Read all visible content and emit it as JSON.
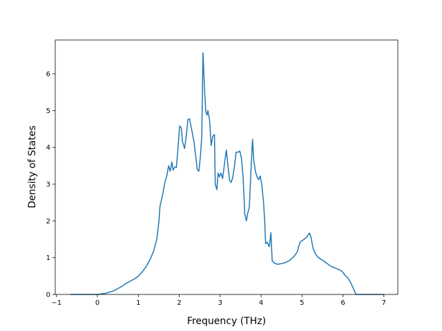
{
  "chart_data": {
    "type": "line",
    "x_label": "Frequency (THz)",
    "y_label": "Density of States",
    "xlim": [
      -1.03,
      7.34
    ],
    "ylim": [
      0,
      6.92
    ],
    "xticks": [
      {
        "value": -1,
        "label": "−1"
      },
      0,
      1,
      2,
      3,
      4,
      5,
      6,
      7
    ],
    "yticks": [
      0,
      1,
      2,
      3,
      4,
      5,
      6
    ],
    "grid": false,
    "series": [
      {
        "color": "#1f77b4",
        "x": [
          -0.66,
          0,
          0.2,
          0.4,
          0.6,
          0.7,
          0.9,
          1.0,
          1.1,
          1.2,
          1.3,
          1.38,
          1.45,
          1.5,
          1.53,
          1.6,
          1.65,
          1.7,
          1.74,
          1.78,
          1.82,
          1.85,
          1.89,
          1.93,
          1.97,
          2.01,
          2.05,
          2.08,
          2.13,
          2.18,
          2.21,
          2.25,
          2.3,
          2.36,
          2.44,
          2.48,
          2.52,
          2.55,
          2.58,
          2.62,
          2.65,
          2.68,
          2.7,
          2.74,
          2.78,
          2.82,
          2.86,
          2.88,
          2.92,
          2.95,
          2.98,
          3.02,
          3.06,
          3.11,
          3.15,
          3.19,
          3.23,
          3.27,
          3.31,
          3.35,
          3.39,
          3.44,
          3.48,
          3.52,
          3.56,
          3.6,
          3.64,
          3.67,
          3.71,
          3.75,
          3.79,
          3.82,
          3.86,
          3.9,
          3.94,
          3.98,
          4.02,
          4.06,
          4.09,
          4.11,
          4.15,
          4.2,
          4.24,
          4.27,
          4.33,
          4.4,
          4.5,
          4.6,
          4.7,
          4.8,
          4.88,
          4.95,
          5.05,
          5.12,
          5.18,
          5.22,
          5.27,
          5.33,
          5.4,
          5.5,
          5.6,
          5.7,
          5.85,
          5.95,
          6.0,
          6.05,
          6.12,
          6.2,
          6.27,
          6.32,
          7.0
        ],
        "values": [
          0,
          0,
          0.03,
          0.1,
          0.22,
          0.3,
          0.42,
          0.5,
          0.62,
          0.77,
          0.98,
          1.2,
          1.5,
          1.95,
          2.4,
          2.75,
          3.05,
          3.25,
          3.5,
          3.35,
          3.6,
          3.38,
          3.47,
          3.45,
          4.0,
          4.58,
          4.53,
          4.15,
          3.97,
          4.4,
          4.75,
          4.78,
          4.5,
          4.15,
          3.4,
          3.35,
          3.8,
          4.3,
          6.57,
          5.5,
          4.95,
          4.88,
          5.0,
          4.75,
          4.05,
          4.3,
          4.35,
          3.0,
          2.85,
          3.3,
          3.2,
          3.3,
          3.15,
          3.6,
          3.93,
          3.5,
          3.1,
          3.05,
          3.2,
          3.5,
          3.87,
          3.87,
          3.9,
          3.7,
          3.2,
          2.2,
          2.0,
          2.2,
          2.35,
          3.3,
          4.22,
          3.65,
          3.35,
          3.2,
          3.12,
          3.22,
          2.95,
          2.5,
          1.95,
          1.38,
          1.42,
          1.3,
          1.68,
          0.92,
          0.85,
          0.82,
          0.84,
          0.87,
          0.93,
          1.03,
          1.15,
          1.42,
          1.5,
          1.57,
          1.67,
          1.55,
          1.25,
          1.1,
          1.0,
          0.93,
          0.85,
          0.77,
          0.7,
          0.65,
          0.6,
          0.52,
          0.45,
          0.3,
          0.12,
          0,
          0
        ]
      }
    ]
  }
}
